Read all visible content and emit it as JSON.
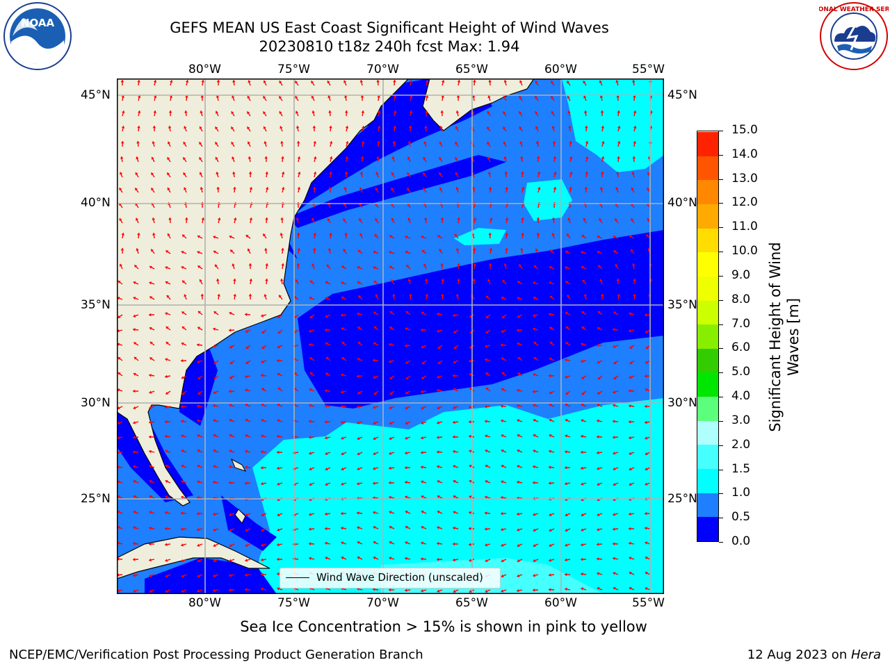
{
  "header": {
    "title_line1": "GEFS MEAN US East Coast Significant Height of Wind Waves",
    "title_line2": "20230810 t18z 240h fcst   Max: 1.94"
  },
  "logos": {
    "noaa_text": "NOAA",
    "nws_text": "NATIONAL WEATHER SERVICE"
  },
  "map": {
    "lon_labels": [
      "80°W",
      "75°W",
      "70°W",
      "65°W",
      "60°W",
      "55°W"
    ],
    "lat_labels": [
      "45°N",
      "40°N",
      "35°N",
      "30°N",
      "25°N"
    ],
    "legend_label": "Wind Wave Direction (unscaled)",
    "colors": {
      "land": "#efeedc",
      "arrow": "#ff0000",
      "grid": "#b0b0b0"
    }
  },
  "colorbar": {
    "label_line1": "Significant Height of Wind",
    "label_line2": "Waves [m]",
    "ticks": [
      "0.0",
      "0.5",
      "1.0",
      "1.5",
      "2.0",
      "3.0",
      "4.0",
      "5.0",
      "6.0",
      "7.0",
      "8.0",
      "9.0",
      "10.0",
      "11.0",
      "12.0",
      "13.0",
      "14.0",
      "15.0"
    ],
    "colors": [
      "#0000ff",
      "#1e7fff",
      "#00ffff",
      "#46ffff",
      "#b0ffff",
      "#5cff7c",
      "#00e600",
      "#33cc00",
      "#88ee00",
      "#ccff00",
      "#eeff00",
      "#ffff00",
      "#ffdd00",
      "#ffaa00",
      "#ff8800",
      "#ff5500",
      "#ff2200"
    ]
  },
  "footer": {
    "note": "Sea Ice Concentration > 15% is shown in pink to yellow",
    "credit": "NCEP/EMC/Verification Post Processing Product Generation Branch",
    "date": "12 Aug 2023 on ",
    "machine": "Hera"
  }
}
